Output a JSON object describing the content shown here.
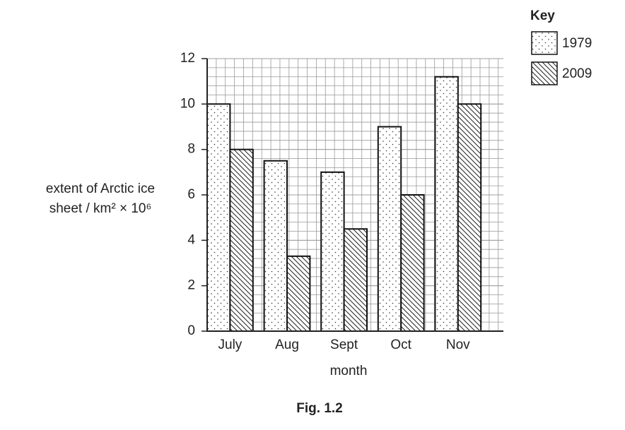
{
  "chart_data": {
    "type": "bar",
    "y_label": [
      "extent of Arctic ice",
      "sheet / km² × 10⁶"
    ],
    "x_label": "month",
    "caption": "Fig. 1.2",
    "legend_title": "Key",
    "legend_position": "top-right",
    "categories": [
      "July",
      "Aug",
      "Sept",
      "Oct",
      "Nov"
    ],
    "series": [
      {
        "name": "1979",
        "fill": "dots",
        "values": [
          10,
          7.5,
          7,
          9,
          11.2
        ]
      },
      {
        "name": "2009",
        "fill": "hatch",
        "values": [
          8,
          3.3,
          4.5,
          6,
          10
        ]
      }
    ],
    "ylim": [
      0,
      12
    ],
    "yticks": [
      0,
      2,
      4,
      6,
      8,
      10,
      12
    ],
    "grid": true
  }
}
